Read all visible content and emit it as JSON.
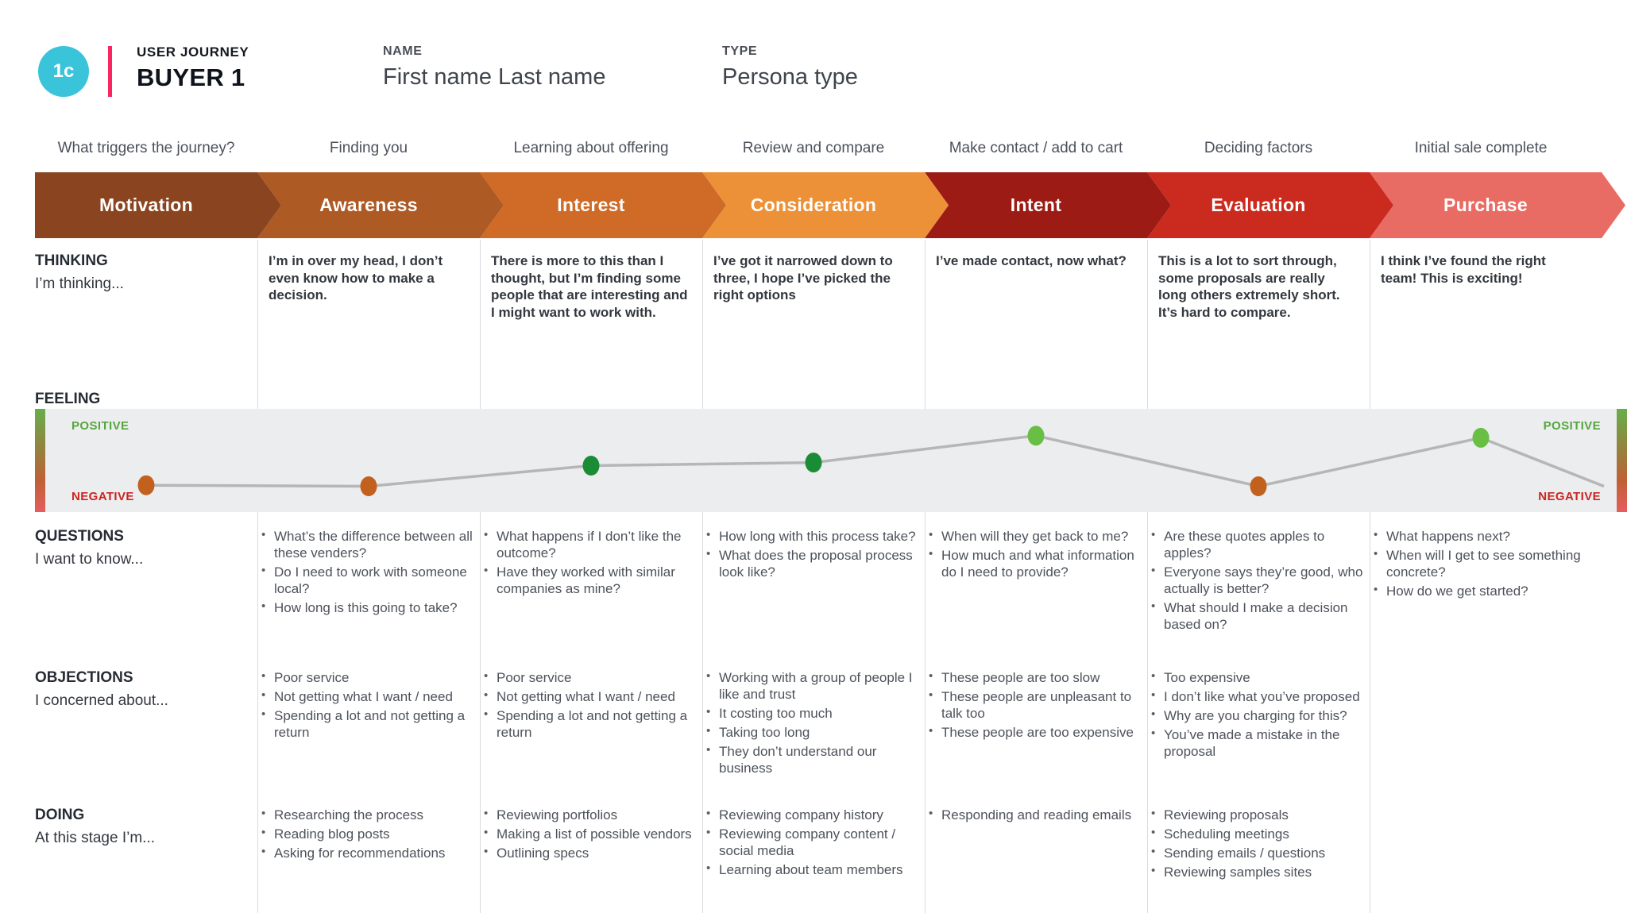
{
  "header": {
    "badge": "1c",
    "kicker": "USER JOURNEY",
    "title": "BUYER 1",
    "name_label": "NAME",
    "name_value": "First name Last name",
    "type_label": "TYPE",
    "type_value": "Persona type"
  },
  "stages": [
    {
      "sub": "What triggers the journey?",
      "label": "Motivation",
      "color": "#8a4520"
    },
    {
      "sub": "Finding you",
      "label": "Awareness",
      "color": "#ae5a24"
    },
    {
      "sub": "Learning about offering",
      "label": "Interest",
      "color": "#cf6b27"
    },
    {
      "sub": "Review and compare",
      "label": "Consideration",
      "color": "#ec9138"
    },
    {
      "sub": "Make contact / add to cart",
      "label": "Intent",
      "color": "#9c1c15"
    },
    {
      "sub": "Deciding factors",
      "label": "Evaluation",
      "color": "#cb2b1e"
    },
    {
      "sub": "Initial sale complete",
      "label": "Purchase",
      "color": "#e96c64"
    }
  ],
  "rows": {
    "thinking": {
      "label": "THINKING",
      "sublabel": "I’m thinking...",
      "cells": {
        "1": "I’m in over my head, I don’t even know how to make a decision.",
        "2": "There is more to this than I thought, but I’m finding some people that are interesting and I might want to work with.",
        "3": "I’ve got it narrowed down to three, I hope I’ve picked the right options",
        "4": "I’ve made contact, now what?",
        "5": "This is a lot to sort through, some proposals are really long others extremely short. It’s hard to compare.",
        "6": "I think I’ve found the right team! This is exciting!"
      }
    },
    "feeling": {
      "label": "FEELING",
      "positive": "POSITIVE",
      "negative": "NEGATIVE"
    },
    "questions": {
      "label": "QUESTIONS",
      "sublabel": "I want to know...",
      "cells": {
        "1": [
          "What’s the difference between all these venders?",
          "Do I need to work with someone local?",
          "How long is this going to take?"
        ],
        "2": [
          "What happens if I don’t like the outcome?",
          "Have they worked with similar companies as mine?"
        ],
        "3": [
          "How long with this process take?",
          "What does the proposal process look like?"
        ],
        "4": [
          "When will they get back to me?",
          "How much and what information do I need to provide?"
        ],
        "5": [
          "Are these quotes apples to apples?",
          "Everyone says they’re good, who actually is better?",
          "What should I make a decision based on?"
        ],
        "6": [
          "What happens next?",
          "When will I get to see something concrete?",
          "How do we get started?"
        ]
      }
    },
    "objections": {
      "label": "OBJECTIONS",
      "sublabel": "I concerned about...",
      "cells": {
        "1": [
          "Poor service",
          "Not getting what I want / need",
          "Spending a lot and not getting a return"
        ],
        "2": [
          "Poor service",
          "Not getting what I want / need",
          "Spending a lot and not getting a return"
        ],
        "3": [
          "Working with a group of people I like and trust",
          "It costing too much",
          "Taking too long",
          "They don’t understand our business"
        ],
        "4": [
          "These people are too slow",
          "These people are unpleasant to talk too",
          "These people are too expensive"
        ],
        "5": [
          "Too expensive",
          "I don’t like what you’ve proposed",
          "Why are you charging for this?",
          "You’ve made a mistake in the proposal"
        ],
        "6": []
      }
    },
    "doing": {
      "label": "DOING",
      "sublabel": "At this stage I’m...",
      "cells": {
        "1": [
          "Researching the process",
          "Reading blog posts",
          "Asking for recommendations"
        ],
        "2": [
          "Reviewing portfolios",
          "Making a list of possible vendors",
          "Outlining specs"
        ],
        "3": [
          "Reviewing company history",
          "Reviewing company content / social media",
          "Learning about team members"
        ],
        "4": [
          "Responding and reading emails"
        ],
        "5": [
          "Reviewing proposals",
          "Scheduling meetings",
          "Sending emails / questions",
          "Reviewing samples sites"
        ],
        "6": []
      }
    }
  },
  "chart_data": {
    "type": "line",
    "title": "FEELING",
    "categories": [
      "Motivation",
      "Awareness",
      "Interest",
      "Consideration",
      "Intent",
      "Evaluation",
      "Purchase"
    ],
    "values": [
      0.26,
      0.25,
      0.45,
      0.48,
      0.74,
      0.25,
      0.72
    ],
    "value_scale": "0 = NEGATIVE (band bottom), 1 = POSITIVE (band top)",
    "ylim": [
      0,
      1
    ],
    "dot_colors": [
      "#c2601e",
      "#c2601e",
      "#1b8c36",
      "#1b8c36",
      "#68bf43",
      "#c2601e",
      "#68bf43"
    ],
    "line_color": "#b5b6b7",
    "band_background": "#ecedef",
    "trail": {
      "dx": 155,
      "value": 0.25
    },
    "legend_position": "none",
    "grid": false
  }
}
